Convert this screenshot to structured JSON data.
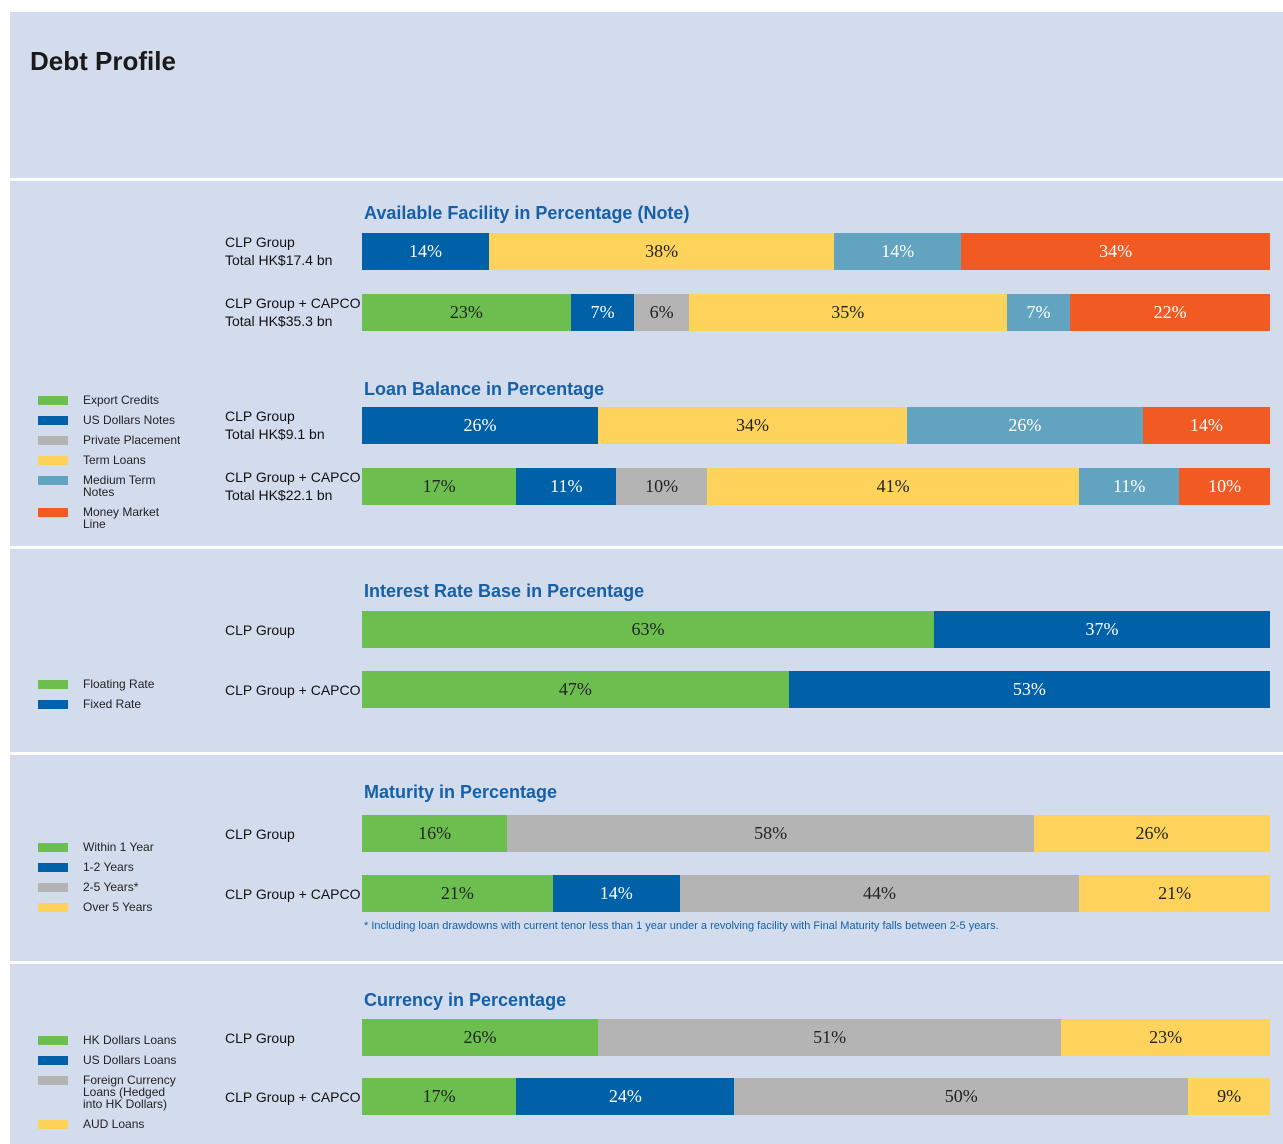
{
  "title": "Debt Profile",
  "chart_data": [
    {
      "type": "stacked-bar",
      "title": "Available Facility in Percentage (Note)",
      "xlim": [
        0,
        100
      ],
      "categories": [
        "CLP Group",
        "CLP Group + CAPCO"
      ],
      "category_totals": [
        "Total HK$17.4 bn",
        "Total HK$35.3 bn"
      ],
      "legend": "left",
      "series": [
        {
          "name": "Export Credits",
          "color": "#6cbf4f",
          "values": [
            null,
            23
          ],
          "value_labels": [
            null,
            "23%"
          ]
        },
        {
          "name": "US Dollars Notes",
          "color": "#0060a8",
          "values": [
            14,
            7
          ],
          "value_labels": [
            "14%",
            "7%"
          ]
        },
        {
          "name": "Private Placement",
          "color": "#b4b4b4",
          "values": [
            null,
            6
          ],
          "value_labels": [
            null,
            "6%"
          ]
        },
        {
          "name": "Term Loans",
          "color": "#fdd35c",
          "values": [
            38,
            35
          ],
          "value_labels": [
            "38%",
            "35%"
          ]
        },
        {
          "name": "Medium Term Notes",
          "color": "#62a3bf",
          "values": [
            14,
            7
          ],
          "value_labels": [
            "14%",
            "7%"
          ]
        },
        {
          "name": "Money Market Line",
          "color": "#f15a22",
          "values": [
            34,
            22
          ],
          "value_labels": [
            "34%",
            "22%"
          ]
        }
      ]
    },
    {
      "type": "stacked-bar",
      "title": "Loan Balance in Percentage",
      "xlim": [
        0,
        100
      ],
      "categories": [
        "CLP Group",
        "CLP Group + CAPCO"
      ],
      "category_totals": [
        "Total HK$9.1 bn",
        "Total HK$22.1 bn"
      ],
      "series": [
        {
          "color": "#6cbf4f",
          "values": [
            null,
            17
          ],
          "value_labels": [
            null,
            "17%"
          ]
        },
        {
          "color": "#0060a8",
          "values": [
            26,
            11
          ],
          "value_labels": [
            "26%",
            "11%"
          ]
        },
        {
          "color": "#b4b4b4",
          "values": [
            null,
            10
          ],
          "value_labels": [
            null,
            "10%"
          ]
        },
        {
          "color": "#fdd35c",
          "values": [
            34,
            41
          ],
          "value_labels": [
            "34%",
            "41%"
          ]
        },
        {
          "color": "#62a3bf",
          "values": [
            26,
            11
          ],
          "value_labels": [
            "26%",
            "11%"
          ]
        },
        {
          "color": "#f15a22",
          "values": [
            14,
            10
          ],
          "value_labels": [
            "14%",
            "10%"
          ]
        }
      ]
    },
    {
      "type": "stacked-bar",
      "title": "Interest Rate Base in Percentage",
      "xlim": [
        0,
        100
      ],
      "categories": [
        "CLP Group",
        "CLP Group + CAPCO"
      ],
      "legend": "left",
      "series": [
        {
          "name": "Floating Rate",
          "color": "#6cbf4f",
          "values": [
            63,
            47
          ],
          "value_labels": [
            "63%",
            "47%"
          ]
        },
        {
          "name": "Fixed Rate",
          "color": "#0060a8",
          "values": [
            37,
            53
          ],
          "value_labels": [
            "37%",
            "53%"
          ]
        }
      ]
    },
    {
      "type": "stacked-bar",
      "title": "Maturity in Percentage",
      "xlim": [
        0,
        100
      ],
      "categories": [
        "CLP Group",
        "CLP Group + CAPCO"
      ],
      "legend": "left",
      "note": "*  Including loan drawdowns with current tenor less than 1 year under a revolving facility with Final Maturity falls between 2-5 years.",
      "series": [
        {
          "name": "Within 1 Year",
          "color": "#6cbf4f",
          "values": [
            16,
            21
          ],
          "value_labels": [
            "16%",
            "21%"
          ]
        },
        {
          "name": "1-2 Years",
          "color": "#0060a8",
          "values": [
            null,
            14
          ],
          "value_labels": [
            null,
            "14%"
          ]
        },
        {
          "name": "2-5 Years*",
          "color": "#b4b4b4",
          "values": [
            58,
            44
          ],
          "value_labels": [
            "58%",
            "44%"
          ]
        },
        {
          "name": "Over 5 Years",
          "color": "#fdd35c",
          "values": [
            26,
            21
          ],
          "value_labels": [
            "26%",
            "21%"
          ]
        }
      ]
    },
    {
      "type": "stacked-bar",
      "title": "Currency in Percentage",
      "xlim": [
        0,
        100
      ],
      "categories": [
        "CLP Group",
        "CLP Group + CAPCO"
      ],
      "legend": "left",
      "series": [
        {
          "name": "HK Dollars Loans",
          "color": "#6cbf4f",
          "values": [
            26,
            17
          ],
          "value_labels": [
            "26%",
            "17%"
          ]
        },
        {
          "name": "US Dollars Loans",
          "color": "#0060a8",
          "values": [
            null,
            24
          ],
          "value_labels": [
            null,
            "24%"
          ]
        },
        {
          "name": "Foreign Currency Loans (Hedged into HK Dollars)",
          "color": "#b4b4b4",
          "values": [
            51,
            50
          ],
          "value_labels": [
            "51%",
            "50%"
          ]
        },
        {
          "name": "AUD Loans",
          "color": "#fdd35c",
          "values": [
            23,
            9
          ],
          "value_labels": [
            "23%",
            "9%"
          ]
        }
      ]
    }
  ]
}
